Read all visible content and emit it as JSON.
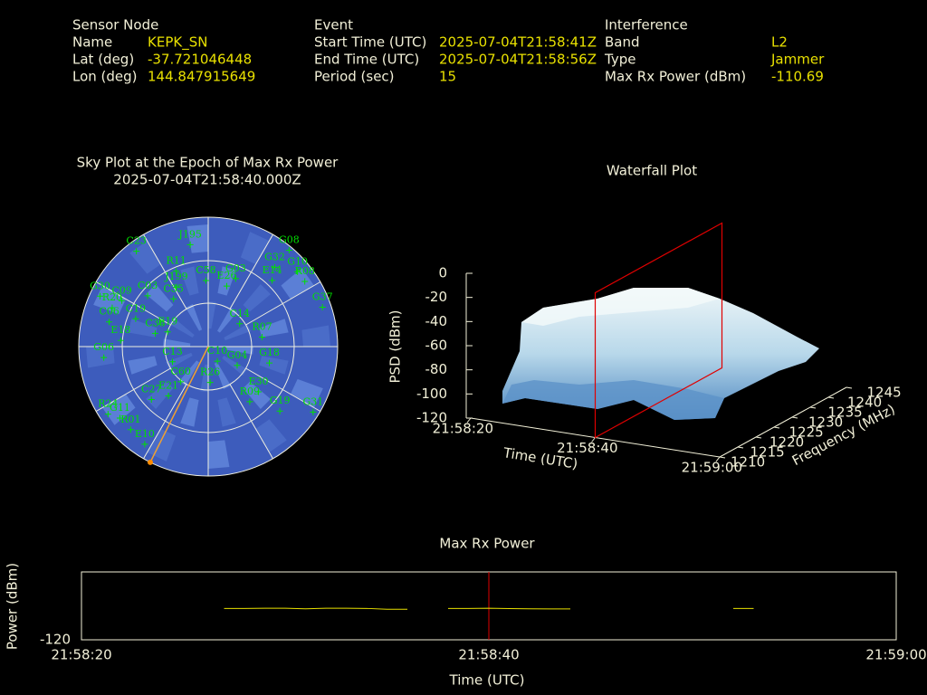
{
  "header": {
    "sensor_node": {
      "title": "Sensor Node",
      "rows": [
        [
          "Name",
          "KEPK_SN"
        ],
        [
          "Lat (deg)",
          -37.721046448
        ],
        [
          "Lon (deg)",
          144.847915649
        ]
      ]
    },
    "event": {
      "title": "Event",
      "rows": [
        [
          "Start Time (UTC)",
          "2025-07-04T21:58:41Z"
        ],
        [
          "End Time (UTC)",
          "2025-07-04T21:58:56Z"
        ],
        [
          "Period (sec)",
          15
        ]
      ]
    },
    "interference": {
      "title": "Interference",
      "rows": [
        [
          "Band",
          "L2"
        ],
        [
          "Type",
          "Jammer"
        ],
        [
          "Max Rx Power (dBm)",
          -110.69
        ]
      ]
    }
  },
  "sky_plot": {
    "title": "Sky Plot at the Epoch of Max Rx Power",
    "subtitle": "2025-07-04T21:58:40.000Z",
    "jammer_direction": {
      "az": 206.6,
      "el": 0
    },
    "satellites": [
      {
        "name": "C23",
        "az": 323,
        "el": 7
      },
      {
        "name": "J195",
        "az": 350,
        "el": 18
      },
      {
        "name": "G08",
        "az": 40,
        "el": 2.5
      },
      {
        "name": "G10",
        "az": 50,
        "el": 9
      },
      {
        "name": "R08",
        "az": 56,
        "el": 9
      },
      {
        "name": "E14",
        "az": 44,
        "el": 26
      },
      {
        "name": "G37",
        "az": 71,
        "el": 6
      },
      {
        "name": "R11",
        "az": 337,
        "el": 33
      },
      {
        "name": "J199",
        "az": 332,
        "el": 43
      },
      {
        "name": "C35",
        "az": 324,
        "el": 49
      },
      {
        "name": "C03",
        "az": 310,
        "el": 35
      },
      {
        "name": "C09",
        "az": 298,
        "el": 22
      },
      {
        "name": "G30",
        "az": 295,
        "el": 7
      },
      {
        "name": "R20",
        "az": 292,
        "el": 18
      },
      {
        "name": "G06",
        "az": 264,
        "el": 17
      },
      {
        "name": "E18",
        "az": 274,
        "el": 29
      },
      {
        "name": "C06",
        "az": 284,
        "el": 19
      },
      {
        "name": "C19",
        "az": 291,
        "el": 36
      },
      {
        "name": "C38",
        "az": 284,
        "el": 52
      },
      {
        "name": "E19",
        "az": 290,
        "el": 60
      },
      {
        "name": "C14",
        "az": 54,
        "el": 63
      },
      {
        "name": "R07",
        "az": 80,
        "el": 52
      },
      {
        "name": "G18",
        "az": 105,
        "el": 46
      },
      {
        "name": "G04",
        "az": 123,
        "el": 66
      },
      {
        "name": "C13",
        "az": 247,
        "el": 63
      },
      {
        "name": "C58",
        "az": 358,
        "el": 44
      },
      {
        "name": "G03",
        "az": 22,
        "el": 39
      },
      {
        "name": "E26",
        "az": 17,
        "el": 46
      },
      {
        "name": "G32",
        "az": 40,
        "el": 18
      },
      {
        "name": "C10",
        "az": 148,
        "el": 78
      },
      {
        "name": "R26",
        "az": 177,
        "el": 65
      },
      {
        "name": "C60",
        "az": 218,
        "el": 59
      },
      {
        "name": "E21",
        "az": 219,
        "el": 46
      },
      {
        "name": "C27",
        "az": 227,
        "el": 36
      },
      {
        "name": "E30",
        "az": 132,
        "el": 43
      },
      {
        "name": "R09",
        "az": 143,
        "el": 42
      },
      {
        "name": "G19",
        "az": 132,
        "el": 23
      },
      {
        "name": "G31",
        "az": 122,
        "el": 4
      },
      {
        "name": "R24",
        "az": 236,
        "el": 6
      },
      {
        "name": "G11",
        "az": 231,
        "el": 11
      },
      {
        "name": "R01",
        "az": 223,
        "el": 11
      },
      {
        "name": "E10",
        "az": 213,
        "el": 9
      }
    ]
  },
  "waterfall": {
    "title": "Waterfall Plot",
    "z_label": "PSD (dBm)",
    "x_label": "Time (UTC)",
    "y_label": "Frequency (MHz)",
    "zlim": [
      -120,
      0
    ],
    "zticks": [
      0,
      -20,
      -40,
      -60,
      -80,
      -100,
      -120
    ],
    "xlim": [
      "21:58:20",
      "21:59:00"
    ],
    "xticks": [
      "21:58:20",
      "21:58:40",
      "21:59:00"
    ],
    "ylim": [
      1210,
      1245
    ],
    "yticks": [
      1210,
      1215,
      1220,
      1225,
      1230,
      1235,
      1240,
      1245
    ]
  },
  "max_rx_power": {
    "title": "Max Rx Power",
    "y_label": "Power (dBm)",
    "x_label": "Time (UTC)",
    "ylim": [
      -120,
      -100
    ],
    "yticks": [
      -120
    ],
    "xlim": [
      "21:58:20",
      "21:59:00"
    ],
    "xticks": [
      "21:58:20",
      "21:58:40",
      "21:59:00"
    ],
    "color": "#e8e000",
    "marker_color": "#e00000",
    "x": [
      "21:58:27",
      "21:58:28",
      "21:58:29",
      "21:58:30",
      "21:58:31",
      "21:58:32",
      "21:58:33",
      "21:58:34",
      "21:58:35",
      "21:58:36",
      "21:58:37",
      "21:58:38",
      "21:58:39",
      "21:58:40",
      "21:58:41",
      "21:58:42",
      "21:58:43",
      "21:58:44",
      "21:58:45",
      "21:58:52",
      "21:58:53"
    ],
    "values": [
      -110.75,
      -110.75,
      -110.7,
      -110.7,
      -110.85,
      -110.7,
      -110.7,
      -110.75,
      -111.0,
      -111.0,
      null,
      -110.75,
      -110.75,
      -110.69,
      -110.8,
      -110.85,
      -110.9,
      -110.9,
      null,
      -110.75,
      -110.75
    ]
  }
}
